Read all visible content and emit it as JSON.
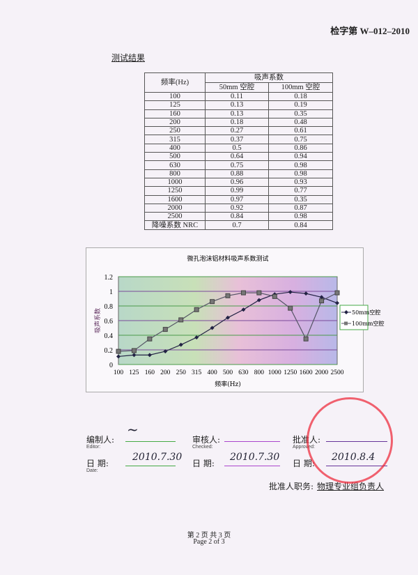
{
  "document_number": "检字第 W–012–2010",
  "section_title": "测试结果",
  "table": {
    "header_freq": "频率(Hz)",
    "header_group": "吸声系数",
    "header_50": "50mm 空腔",
    "header_100": "100mm 空腔",
    "rows": [
      [
        "100",
        "0.11",
        "0.18"
      ],
      [
        "125",
        "0.13",
        "0.19"
      ],
      [
        "160",
        "0.13",
        "0.35"
      ],
      [
        "200",
        "0.18",
        "0.48"
      ],
      [
        "250",
        "0.27",
        "0.61"
      ],
      [
        "315",
        "0.37",
        "0.75"
      ],
      [
        "400",
        "0.5",
        "0.86"
      ],
      [
        "500",
        "0.64",
        "0.94"
      ],
      [
        "630",
        "0.75",
        "0.98"
      ],
      [
        "800",
        "0.88",
        "0.98"
      ],
      [
        "1000",
        "0.96",
        "0.93"
      ],
      [
        "1250",
        "0.99",
        "0.77"
      ],
      [
        "1600",
        "0.97",
        "0.35"
      ],
      [
        "2000",
        "0.92",
        "0.87"
      ],
      [
        "2500",
        "0.84",
        "0.98"
      ],
      [
        "降噪系数 NRC",
        "0.7",
        "0.84"
      ]
    ]
  },
  "chart_data": {
    "type": "line",
    "title": "微孔泡沫铝材料吸声系数测试",
    "xlabel": "频率(Hz)",
    "ylabel": "吸声系数",
    "categories": [
      "100",
      "125",
      "160",
      "200",
      "250",
      "315",
      "400",
      "500",
      "630",
      "800",
      "1000",
      "1250",
      "1600",
      "2000",
      "2500"
    ],
    "ylim": [
      0,
      1.2
    ],
    "yticks": [
      "0",
      "0.2",
      "0.4",
      "0.6",
      "0.8",
      "1",
      "1.2"
    ],
    "grid": true,
    "legend_position": "right",
    "series": [
      {
        "name": "50mm空腔",
        "marker": "diamond",
        "color": "#222244",
        "values": [
          0.11,
          0.13,
          0.13,
          0.18,
          0.27,
          0.37,
          0.5,
          0.64,
          0.75,
          0.88,
          0.96,
          0.99,
          0.97,
          0.92,
          0.84
        ]
      },
      {
        "name": "100mm空腔",
        "marker": "square",
        "color": "#555566",
        "values": [
          0.18,
          0.19,
          0.35,
          0.48,
          0.61,
          0.75,
          0.86,
          0.94,
          0.98,
          0.98,
          0.93,
          0.77,
          0.35,
          0.87,
          0.98
        ]
      }
    ]
  },
  "signatures": {
    "editor_label": "编制人:",
    "editor_en": "Editor:",
    "checked_label": "审核人:",
    "checked_en": "Checked:",
    "approved_label": "批准人:",
    "approved_en": "Approved:",
    "date_label": "日  期:",
    "date_en": "Date:",
    "editor_date": "2010.7.30",
    "checked_date": "2010.7.30",
    "approved_date": "2010.8.4",
    "approver_title_label": "批准人职务:",
    "approver_title": "物理专业组负责人"
  },
  "footer": {
    "cn": "第  2 页 共  3  页",
    "en": "Page 2 of  3"
  },
  "colors": {
    "stamp": "#e02030"
  }
}
